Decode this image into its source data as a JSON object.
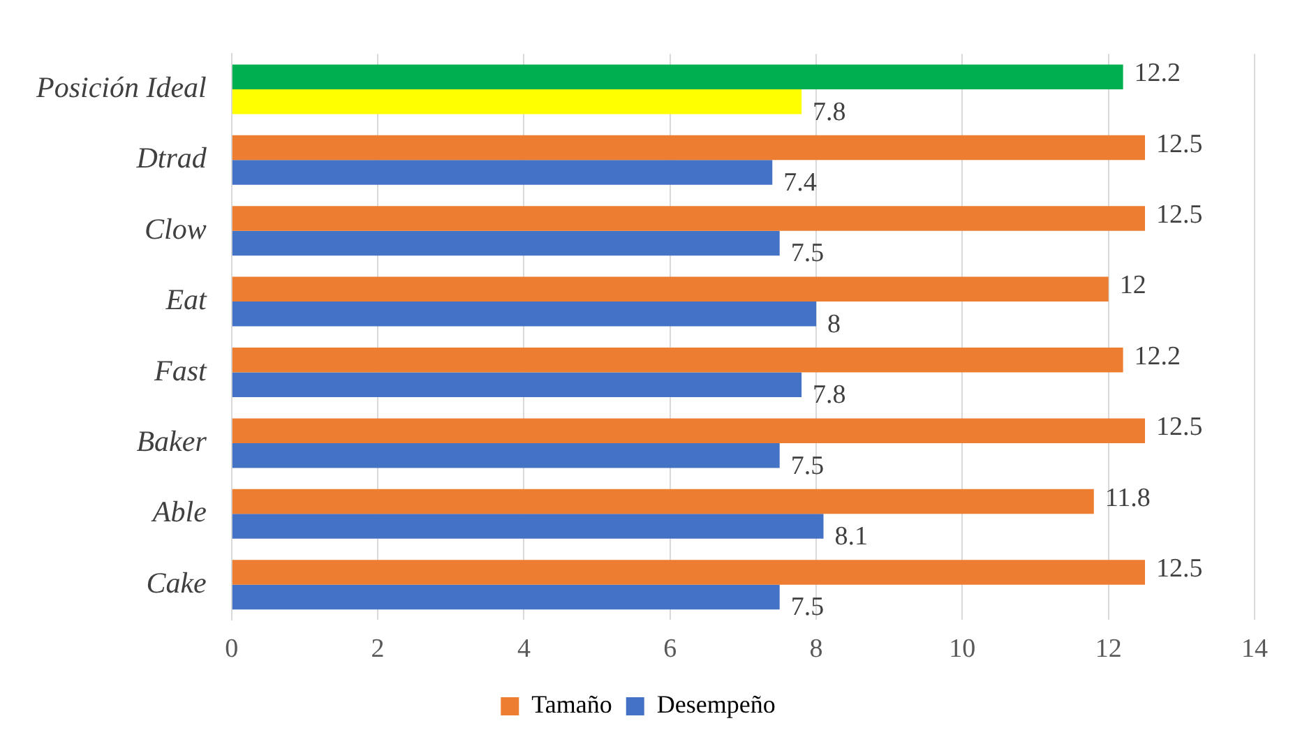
{
  "chart_data": {
    "type": "bar",
    "orientation": "horizontal",
    "categories": [
      "Posición Ideal",
      "Dtrad",
      "Clow",
      "Eat",
      "Fast",
      "Baker",
      "Able",
      "Cake"
    ],
    "series": [
      {
        "name": "Tamaño",
        "color": "#ed7d31",
        "colors": [
          "#00b050",
          "#ed7d31",
          "#ed7d31",
          "#ed7d31",
          "#ed7d31",
          "#ed7d31",
          "#ed7d31",
          "#ed7d31"
        ],
        "values": [
          12.2,
          12.5,
          12.5,
          12,
          12.2,
          12.5,
          11.8,
          12.5
        ]
      },
      {
        "name": "Desempeño",
        "color": "#4472c4",
        "colors": [
          "#ffff00",
          "#4472c4",
          "#4472c4",
          "#4472c4",
          "#4472c4",
          "#4472c4",
          "#4472c4",
          "#4472c4"
        ],
        "values": [
          7.8,
          7.4,
          7.5,
          8,
          7.8,
          7.5,
          8.1,
          7.5
        ]
      }
    ],
    "xlim": [
      0,
      14
    ],
    "xticks": [
      0,
      2,
      4,
      6,
      8,
      10,
      12,
      14
    ],
    "grid": "x",
    "legend": "bottom",
    "data_labels": true
  }
}
